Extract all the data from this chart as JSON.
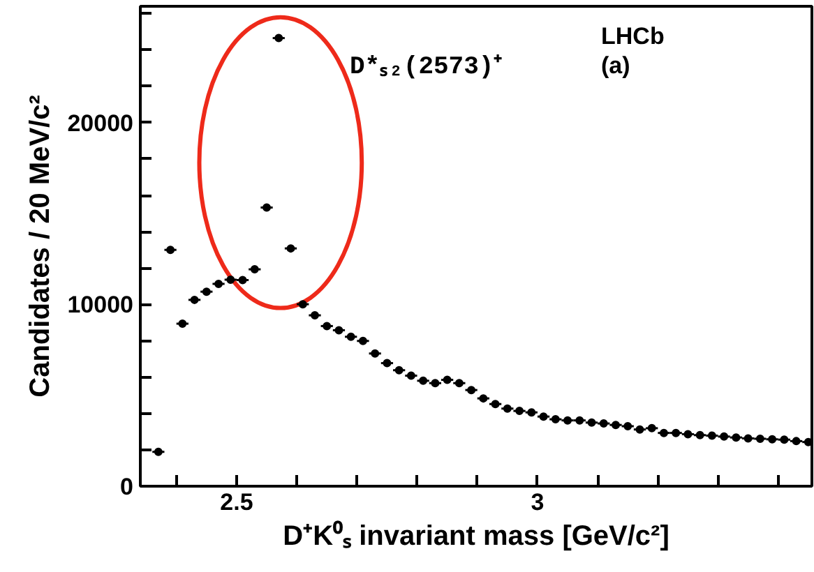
{
  "chart_data": {
    "type": "scatter",
    "xlabel": "D⁺K⁰ₛ invariant mass [GeV/c²]",
    "ylabel": "Candidates / 20 MeV/c²",
    "annotations": [
      "D*ₛ₂(2573)⁺",
      "LHCb",
      "(a)"
    ],
    "x": [
      2.37,
      2.39,
      2.41,
      2.43,
      2.45,
      2.47,
      2.49,
      2.51,
      2.53,
      2.55,
      2.57,
      2.59,
      2.61,
      2.63,
      2.65,
      2.67,
      2.69,
      2.71,
      2.73,
      2.75,
      2.77,
      2.79,
      2.81,
      2.83,
      2.85,
      2.87,
      2.89,
      2.91,
      2.93,
      2.95,
      2.97,
      2.99,
      3.01,
      3.03,
      3.05,
      3.07,
      3.09,
      3.11,
      3.13,
      3.15,
      3.17,
      3.19,
      3.21,
      3.23,
      3.25,
      3.27,
      3.29,
      3.31,
      3.33,
      3.35,
      3.37,
      3.39,
      3.41,
      3.43,
      3.45
    ],
    "series": [
      {
        "color": "#000000",
        "values": [
          1890,
          13000,
          8940,
          10250,
          10700,
          11130,
          11360,
          11340,
          11930,
          15330,
          24650,
          13080,
          10010,
          9400,
          8810,
          8580,
          8220,
          7990,
          7300,
          6770,
          6380,
          6080,
          5800,
          5670,
          5850,
          5670,
          5290,
          4830,
          4520,
          4270,
          4140,
          4060,
          3830,
          3680,
          3620,
          3620,
          3500,
          3450,
          3370,
          3300,
          3120,
          3190,
          2930,
          2930,
          2860,
          2810,
          2780,
          2730,
          2680,
          2630,
          2610,
          2580,
          2560,
          2480,
          2430
        ],
        "xerrors": [
          0.01,
          0.01,
          0.01,
          0.01,
          0.01,
          0.01,
          0.01,
          0.01,
          0.01,
          0.01,
          0.01,
          0.01,
          0.01,
          0.01,
          0.01,
          0.01,
          0.01,
          0.01,
          0.01,
          0.01,
          0.01,
          0.01,
          0.01,
          0.01,
          0.01,
          0.01,
          0.01,
          0.01,
          0.01,
          0.01,
          0.01,
          0.01,
          0.01,
          0.01,
          0.01,
          0.01,
          0.01,
          0.01,
          0.01,
          0.01,
          0.01,
          0.01,
          0.01,
          0.01,
          0.01,
          0.01,
          0.01,
          0.01,
          0.01,
          0.01,
          0.01,
          0.01,
          0.01,
          0.01,
          0.01
        ]
      }
    ],
    "marker": "circle",
    "xlim": [
      2.34,
      3.456
    ],
    "ylim": [
      0,
      26400
    ],
    "xticks": [
      {
        "value": 2.4,
        "label": null
      },
      2.5,
      {
        "value": 2.6,
        "label": null
      },
      {
        "value": 2.7,
        "label": null
      },
      {
        "value": 2.8,
        "label": null
      },
      {
        "value": 2.9,
        "label": null
      },
      3,
      {
        "value": 3.1,
        "label": null
      },
      {
        "value": 3.2,
        "label": null
      },
      {
        "value": 3.3,
        "label": null
      },
      {
        "value": 3.4,
        "label": null
      }
    ],
    "yticks": [
      0,
      {
        "value": 2000,
        "label": null
      },
      {
        "value": 4000,
        "label": null
      },
      {
        "value": 6000,
        "label": null
      },
      {
        "value": 8000,
        "label": null
      },
      10000,
      {
        "value": 12000,
        "label": null
      },
      {
        "value": 14000,
        "label": null
      },
      {
        "value": 16000,
        "label": null
      },
      {
        "value": 18000,
        "label": null
      },
      20000,
      {
        "value": 22000,
        "label": null
      },
      {
        "value": 24000,
        "label": null
      },
      {
        "value": 26000,
        "label": null
      }
    ]
  }
}
